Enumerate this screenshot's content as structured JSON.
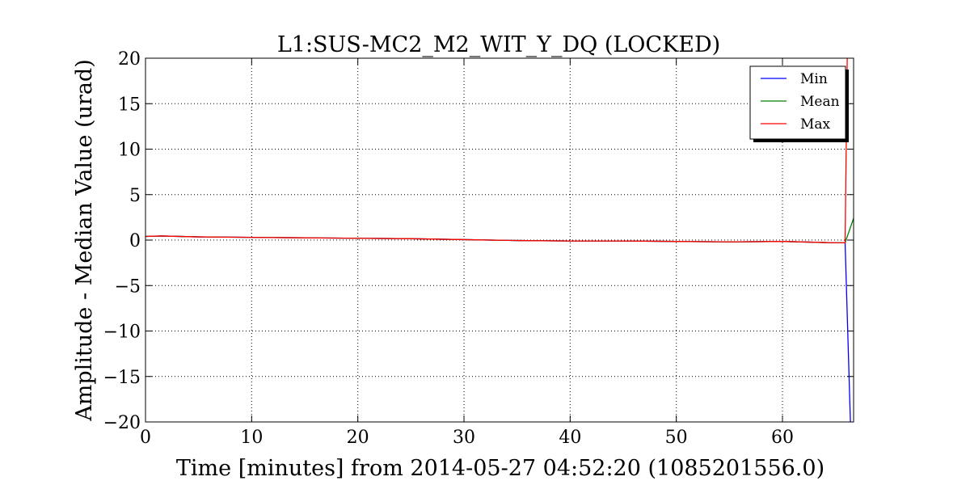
{
  "chart_data": {
    "type": "line",
    "title": "L1:SUS-MC2_M2_WIT_Y_DQ (LOCKED)",
    "xlabel": "Time [minutes] from 2014-05-27 04:52:20 (1085201556.0)",
    "ylabel": "Amplitude - Median Value (urad)",
    "xlim": [
      0,
      66.7
    ],
    "ylim": [
      -20,
      20
    ],
    "xticks": [
      0,
      10,
      20,
      30,
      40,
      50,
      60
    ],
    "yticks": [
      20,
      15,
      10,
      5,
      0,
      -5,
      -10,
      -15,
      -20
    ],
    "xtick_labels": [
      "0",
      "10",
      "20",
      "30",
      "40",
      "50",
      "60"
    ],
    "ytick_labels": [
      "20",
      "15",
      "10",
      "5",
      "0",
      "−5",
      "−10",
      "−15",
      "−20"
    ],
    "grid": true,
    "legend_position": "top-right",
    "series": [
      {
        "name": "Min",
        "color": "#0000ff",
        "x": [
          0,
          1.5,
          5,
          10,
          15,
          20,
          25,
          30,
          35,
          40,
          45,
          50,
          55,
          60,
          65,
          65.9,
          66.4
        ],
        "y": [
          0.4,
          0.45,
          0.35,
          0.3,
          0.25,
          0.2,
          0.15,
          0.05,
          -0.05,
          -0.1,
          -0.1,
          -0.15,
          -0.2,
          -0.15,
          -0.3,
          -0.3,
          -20
        ]
      },
      {
        "name": "Mean",
        "color": "#008000",
        "x": [
          0,
          1.5,
          5,
          10,
          15,
          20,
          25,
          30,
          35,
          40,
          45,
          50,
          55,
          60,
          65,
          65.9,
          66.7
        ],
        "y": [
          0.4,
          0.45,
          0.35,
          0.3,
          0.25,
          0.2,
          0.15,
          0.05,
          -0.05,
          -0.1,
          -0.1,
          -0.15,
          -0.2,
          -0.15,
          -0.3,
          -0.3,
          2.4
        ]
      },
      {
        "name": "Max",
        "color": "#ff0000",
        "x": [
          0,
          1.5,
          5,
          10,
          15,
          20,
          25,
          30,
          35,
          40,
          45,
          50,
          55,
          60,
          65,
          65.9,
          66.1
        ],
        "y": [
          0.4,
          0.45,
          0.35,
          0.3,
          0.25,
          0.2,
          0.15,
          0.05,
          -0.05,
          -0.1,
          -0.1,
          -0.15,
          -0.2,
          -0.15,
          -0.3,
          -0.3,
          20
        ]
      }
    ]
  }
}
